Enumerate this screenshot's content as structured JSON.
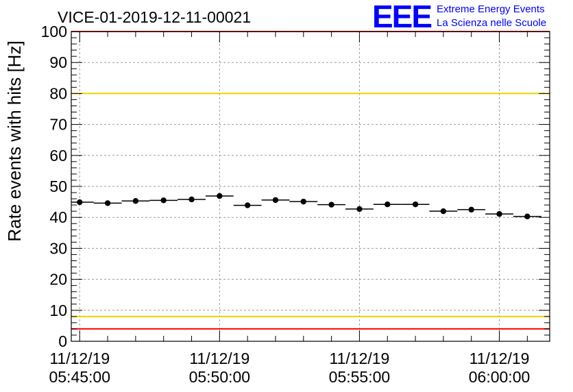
{
  "logo": {
    "letters": "EEE",
    "line1": "Extreme Energy Events",
    "line2": "La Scienza nelle Scuole",
    "color": "#0000ff"
  },
  "chart_data": {
    "type": "scatter",
    "title": "VICE-01-2019-12-11-00021",
    "ylabel": "Rate events with hits [Hz]",
    "xlabel": "",
    "ylim": [
      0,
      100
    ],
    "xlim_min": [
      -0.3,
      16.8
    ],
    "y_ticks": [
      0,
      10,
      20,
      30,
      40,
      50,
      60,
      70,
      80,
      90,
      100
    ],
    "x_ticks": [
      {
        "at_min": 0,
        "date": "11/12/19",
        "time": "05:45:00"
      },
      {
        "at_min": 5,
        "date": "11/12/19",
        "time": "05:50:00"
      },
      {
        "at_min": 10,
        "date": "11/12/19",
        "time": "05:55:00"
      },
      {
        "at_min": 15,
        "date": "11/12/19",
        "time": "06:00:00"
      }
    ],
    "bin_width_min": 1.0,
    "points_x_min": [
      0.0,
      1.0,
      2.0,
      3.0,
      4.0,
      5.0,
      6.0,
      7.0,
      8.0,
      9.0,
      10.0,
      11.0,
      12.0,
      13.0,
      14.0,
      15.0,
      16.0
    ],
    "points_y": [
      44.9,
      44.6,
      45.3,
      45.5,
      45.8,
      46.9,
      43.9,
      45.6,
      45.1,
      44.1,
      42.7,
      44.2,
      44.2,
      42.0,
      42.5,
      41.1,
      40.3
    ],
    "reference_lines": [
      {
        "y": 100,
        "color": "#ff0000"
      },
      {
        "y": 80,
        "color": "#f0d000"
      },
      {
        "y": 8,
        "color": "#f0d000"
      },
      {
        "y": 4,
        "color": "#ff0000"
      }
    ],
    "grid": true
  }
}
